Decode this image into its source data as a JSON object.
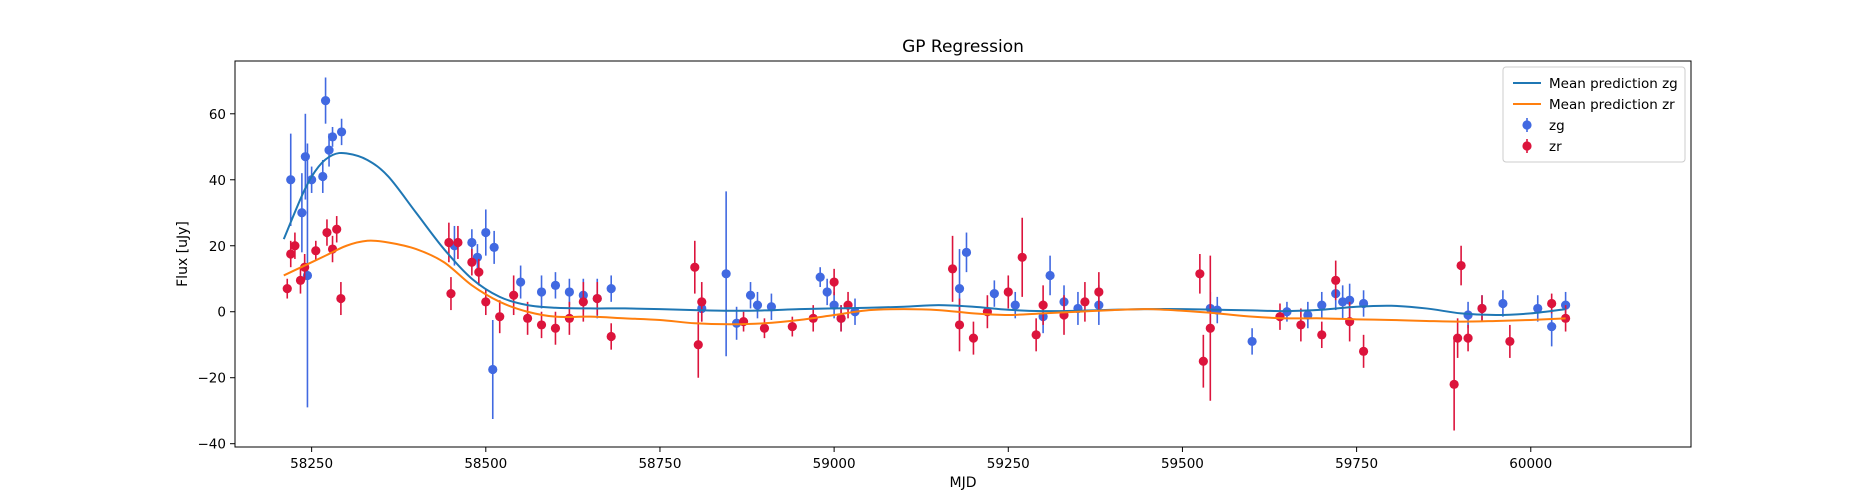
{
  "chart_data": {
    "type": "scatter",
    "title": "GP Regression",
    "xlabel": "MJD",
    "ylabel": "Flux [uJy]",
    "xlim": [
      58140,
      60230
    ],
    "ylim": [
      -41,
      76
    ],
    "xticks": [
      58250,
      58500,
      58750,
      59000,
      59250,
      59500,
      59750,
      60000
    ],
    "yticks": [
      -40,
      -20,
      0,
      20,
      40,
      60
    ],
    "grid": false,
    "legend_position": "top-right",
    "colors": {
      "mean_zg": "#1f77b4",
      "mean_zr": "#ff7f0e",
      "zg": "#4169e1",
      "zr": "#dc143c"
    },
    "legend": [
      {
        "label": "Mean prediction zg",
        "kind": "line",
        "color": "#1f77b4"
      },
      {
        "label": "Mean prediction zr",
        "kind": "line",
        "color": "#ff7f0e"
      },
      {
        "label": "zg",
        "kind": "errorbar",
        "color": "#4169e1"
      },
      {
        "label": "zr",
        "kind": "errorbar",
        "color": "#dc143c"
      }
    ],
    "series": [
      {
        "name": "Mean prediction zg",
        "kind": "line",
        "x": [
          58210,
          58240,
          58260,
          58280,
          58300,
          58330,
          58360,
          58400,
          58440,
          58480,
          58520,
          58560,
          58600,
          58650,
          58700,
          58750,
          58800,
          58850,
          58900,
          58950,
          59000,
          59050,
          59100,
          59150,
          59200,
          59250,
          59300,
          59350,
          59400,
          59450,
          59500,
          59550,
          59600,
          59650,
          59700,
          59750,
          59800,
          59850,
          59900,
          59950,
          60000,
          60050
        ],
        "y": [
          22,
          37,
          44,
          47.5,
          48,
          46,
          41,
          30,
          19,
          10,
          4.5,
          2,
          1.2,
          1,
          1,
          0.8,
          0.5,
          0.3,
          0.4,
          0.8,
          1,
          1.2,
          1.5,
          2,
          1.5,
          0.6,
          0.2,
          0.3,
          0.6,
          0.8,
          0.8,
          0.6,
          0.4,
          0.2,
          0.6,
          1.5,
          1.8,
          1,
          -0.5,
          -1,
          -0.5,
          0.8
        ]
      },
      {
        "name": "Mean prediction zr",
        "kind": "line",
        "x": [
          58210,
          58240,
          58270,
          58300,
          58330,
          58360,
          58400,
          58440,
          58480,
          58520,
          58560,
          58600,
          58650,
          58700,
          58750,
          58800,
          58850,
          58900,
          58950,
          59000,
          59050,
          59100,
          59150,
          59200,
          59250,
          59300,
          59350,
          59400,
          59450,
          59500,
          59550,
          59600,
          59650,
          59700,
          59750,
          59800,
          59850,
          59900,
          59950,
          60000,
          60050
        ],
        "y": [
          11,
          14,
          17,
          20,
          21.5,
          21,
          19,
          15,
          8,
          3,
          0,
          -1.5,
          -1.5,
          -2,
          -2.5,
          -3.5,
          -3.8,
          -3.5,
          -2.5,
          -1,
          0.5,
          0.8,
          0.5,
          -0.5,
          -1,
          -0.5,
          0,
          0.5,
          0.8,
          0.3,
          -0.5,
          -1.5,
          -2,
          -2,
          -2.3,
          -2.5,
          -2.8,
          -3,
          -2.8,
          -2.5,
          -2
        ]
      },
      {
        "name": "zg",
        "kind": "errorbar",
        "x": [
          58220,
          58236,
          58241,
          58244,
          58250,
          58266,
          58270,
          58275,
          58280,
          58293,
          58455,
          58480,
          58488,
          58500,
          58510,
          58512,
          58550,
          58580,
          58600,
          58620,
          58640,
          58660,
          58680,
          58810,
          58845,
          58860,
          58880,
          58890,
          58910,
          58980,
          58990,
          59000,
          59010,
          59030,
          59180,
          59190,
          59230,
          59260,
          59300,
          59310,
          59330,
          59350,
          59380,
          59540,
          59550,
          59600,
          59650,
          59680,
          59700,
          59720,
          59730,
          59740,
          59760,
          59910,
          59930,
          59960,
          60010,
          60030,
          60050
        ],
        "y": [
          40,
          30,
          47,
          11,
          40,
          41,
          64,
          49,
          53,
          54.5,
          20,
          21,
          16.5,
          24,
          -17.5,
          19.5,
          9,
          6,
          8,
          6,
          5,
          4,
          7,
          1,
          11.5,
          -3.5,
          5,
          2,
          1.5,
          10.5,
          6,
          2,
          -2,
          0,
          7,
          18,
          5.5,
          2,
          -1.5,
          11,
          3,
          1,
          2,
          1,
          0.5,
          -9,
          0,
          -1,
          2,
          5.5,
          3,
          3.5,
          2.5,
          -1,
          1,
          2.5,
          1,
          -4.5,
          2
        ],
        "err": [
          14,
          12,
          13,
          40,
          4,
          5,
          7,
          5,
          3,
          4,
          6,
          4,
          4,
          7,
          15,
          5,
          5,
          5,
          4,
          4,
          5,
          6,
          4,
          4,
          25,
          5,
          4,
          4,
          4,
          3,
          4,
          4,
          4,
          4,
          12,
          6,
          4,
          4,
          5,
          6,
          5,
          5,
          6,
          5,
          4,
          4,
          3,
          4,
          4,
          5,
          5,
          5,
          4,
          4,
          4,
          4,
          4,
          6,
          4
        ]
      },
      {
        "name": "zr",
        "kind": "errorbar",
        "x": [
          58215,
          58220,
          58226,
          58234,
          58240,
          58256,
          58272,
          58280,
          58286,
          58292,
          58447,
          58450,
          58460,
          58480,
          58490,
          58500,
          58520,
          58540,
          58560,
          58580,
          58600,
          58620,
          58640,
          58660,
          58680,
          58800,
          58805,
          58810,
          58870,
          58900,
          58940,
          58970,
          59000,
          59010,
          59020,
          59170,
          59180,
          59200,
          59220,
          59250,
          59270,
          59290,
          59300,
          59330,
          59360,
          59380,
          59525,
          59530,
          59540,
          59640,
          59670,
          59700,
          59720,
          59740,
          59760,
          59890,
          59895,
          59900,
          59910,
          59930,
          59970,
          60030,
          60050
        ],
        "y": [
          7,
          17.5,
          20,
          9.5,
          13.5,
          18.5,
          24,
          19,
          25,
          4,
          21,
          5.5,
          21,
          15,
          12,
          3,
          -1.5,
          5,
          -2,
          -4,
          -5,
          -2,
          3,
          4,
          -7.5,
          13.5,
          -10,
          3,
          -3,
          -5,
          -4.5,
          -2,
          9,
          -2,
          2,
          13,
          -4,
          -8,
          0,
          6,
          16.5,
          -7,
          2,
          -1,
          3,
          6,
          11.5,
          -15,
          -5,
          -1.5,
          -4,
          -7,
          9.5,
          -3,
          -12,
          -22,
          -8,
          14,
          -8,
          1,
          -9,
          2.5,
          -2
        ],
        "err": [
          3,
          4,
          4,
          4,
          4,
          3,
          4,
          4,
          4,
          5,
          6,
          5,
          5,
          4,
          4,
          4,
          5,
          6,
          5,
          4,
          5,
          5,
          6,
          5,
          4,
          8,
          10,
          6,
          3,
          3,
          3,
          4,
          4,
          4,
          4,
          10,
          8,
          5,
          5,
          5,
          12,
          5,
          6,
          6,
          6,
          6,
          6,
          8,
          22,
          4,
          5,
          4,
          6,
          6,
          5,
          14,
          6,
          6,
          4,
          4,
          5,
          3,
          4
        ]
      }
    ]
  }
}
